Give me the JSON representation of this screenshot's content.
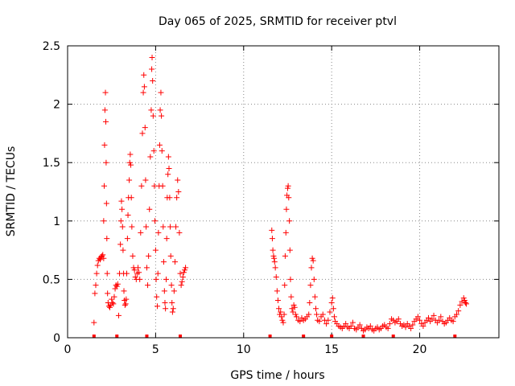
{
  "chart_data": {
    "type": "scatter",
    "title": "Day 065 of 2025, SRMTID for receiver ptvl",
    "xlabel": "GPS time / hours",
    "ylabel": "SRMTID / TECUs",
    "xlim": [
      0,
      24.5
    ],
    "ylim": [
      0,
      2.5
    ],
    "x_ticks": [
      0,
      5,
      10,
      15,
      20
    ],
    "y_ticks": [
      0,
      0.5,
      1,
      1.5,
      2,
      2.5
    ],
    "x_tick_labels": [
      "0",
      "5",
      "10",
      "15",
      "20"
    ],
    "y_tick_labels": [
      "0",
      "0.5",
      "1",
      "1.5",
      "2",
      "2.5"
    ],
    "grid": true,
    "marker": "+",
    "color": "#ff0000",
    "series": [
      {
        "name": "SRMTID",
        "points": [
          [
            1.5,
            0.13
          ],
          [
            1.55,
            0.38
          ],
          [
            1.6,
            0.45
          ],
          [
            1.65,
            0.55
          ],
          [
            1.7,
            0.62
          ],
          [
            1.75,
            0.66
          ],
          [
            1.8,
            0.68
          ],
          [
            1.85,
            0.67
          ],
          [
            1.9,
            0.69
          ],
          [
            1.95,
            0.7
          ],
          [
            2.0,
            0.71
          ],
          [
            2.05,
            0.68
          ],
          [
            2.05,
            1.0
          ],
          [
            2.08,
            1.3
          ],
          [
            2.1,
            1.65
          ],
          [
            2.12,
            1.95
          ],
          [
            2.15,
            2.1
          ],
          [
            2.17,
            1.85
          ],
          [
            2.19,
            1.5
          ],
          [
            2.21,
            1.15
          ],
          [
            2.23,
            0.85
          ],
          [
            2.25,
            0.55
          ],
          [
            2.27,
            0.38
          ],
          [
            2.3,
            0.3
          ],
          [
            2.35,
            0.27
          ],
          [
            2.4,
            0.26
          ],
          [
            2.45,
            0.28
          ],
          [
            2.5,
            0.33
          ],
          [
            2.55,
            0.3
          ],
          [
            2.6,
            0.29
          ],
          [
            2.65,
            0.35
          ],
          [
            2.7,
            0.42
          ],
          [
            2.75,
            0.45
          ],
          [
            2.8,
            0.44
          ],
          [
            2.85,
            0.46
          ],
          [
            2.9,
            0.19
          ],
          [
            2.95,
            0.55
          ],
          [
            3.0,
            0.8
          ],
          [
            3.03,
            1.0
          ],
          [
            3.06,
            1.17
          ],
          [
            3.09,
            1.1
          ],
          [
            3.12,
            0.95
          ],
          [
            3.15,
            0.75
          ],
          [
            3.18,
            0.55
          ],
          [
            3.2,
            0.4
          ],
          [
            3.23,
            0.32
          ],
          [
            3.26,
            0.28
          ],
          [
            3.3,
            0.29
          ],
          [
            3.33,
            0.33
          ],
          [
            3.36,
            0.55
          ],
          [
            3.4,
            0.85
          ],
          [
            3.43,
            1.05
          ],
          [
            3.46,
            1.2
          ],
          [
            3.5,
            1.35
          ],
          [
            3.53,
            1.5
          ],
          [
            3.56,
            1.57
          ],
          [
            3.59,
            1.48
          ],
          [
            3.62,
            1.2
          ],
          [
            3.65,
            0.95
          ],
          [
            3.7,
            0.7
          ],
          [
            3.75,
            0.6
          ],
          [
            3.8,
            0.58
          ],
          [
            3.85,
            0.52
          ],
          [
            3.9,
            0.5
          ],
          [
            3.95,
            0.55
          ],
          [
            4.0,
            0.6
          ],
          [
            4.05,
            0.56
          ],
          [
            4.1,
            0.5
          ],
          [
            4.15,
            0.9
          ],
          [
            4.2,
            1.3
          ],
          [
            4.25,
            1.75
          ],
          [
            4.3,
            2.1
          ],
          [
            4.33,
            2.25
          ],
          [
            4.36,
            2.15
          ],
          [
            4.4,
            1.8
          ],
          [
            4.43,
            1.35
          ],
          [
            4.46,
            0.95
          ],
          [
            4.5,
            0.6
          ],
          [
            4.55,
            0.45
          ],
          [
            4.6,
            0.7
          ],
          [
            4.65,
            1.1
          ],
          [
            4.7,
            1.55
          ],
          [
            4.75,
            1.95
          ],
          [
            4.78,
            2.3
          ],
          [
            4.8,
            2.4
          ],
          [
            4.83,
            2.2
          ],
          [
            4.86,
            1.9
          ],
          [
            4.9,
            1.6
          ],
          [
            4.93,
            1.3
          ],
          [
            4.96,
            1.0
          ],
          [
            5.0,
            0.75
          ],
          [
            5.03,
            0.5
          ],
          [
            5.06,
            0.35
          ],
          [
            5.1,
            0.27
          ],
          [
            5.13,
            0.55
          ],
          [
            5.16,
            0.9
          ],
          [
            5.2,
            1.3
          ],
          [
            5.23,
            1.65
          ],
          [
            5.26,
            1.95
          ],
          [
            5.3,
            2.1
          ],
          [
            5.33,
            1.9
          ],
          [
            5.36,
            1.6
          ],
          [
            5.4,
            1.3
          ],
          [
            5.43,
            0.95
          ],
          [
            5.46,
            0.65
          ],
          [
            5.5,
            0.4
          ],
          [
            5.53,
            0.3
          ],
          [
            5.56,
            0.25
          ],
          [
            5.6,
            0.5
          ],
          [
            5.63,
            0.85
          ],
          [
            5.66,
            1.2
          ],
          [
            5.7,
            1.4
          ],
          [
            5.73,
            1.55
          ],
          [
            5.76,
            1.45
          ],
          [
            5.8,
            1.2
          ],
          [
            5.83,
            0.95
          ],
          [
            5.86,
            0.7
          ],
          [
            5.9,
            0.45
          ],
          [
            5.93,
            0.3
          ],
          [
            5.96,
            0.22
          ],
          [
            6.0,
            0.25
          ],
          [
            6.05,
            0.4
          ],
          [
            6.1,
            0.65
          ],
          [
            6.15,
            0.95
          ],
          [
            6.2,
            1.2
          ],
          [
            6.25,
            1.35
          ],
          [
            6.3,
            1.25
          ],
          [
            6.35,
            0.9
          ],
          [
            6.4,
            0.55
          ],
          [
            6.45,
            0.45
          ],
          [
            6.5,
            0.48
          ],
          [
            6.55,
            0.52
          ],
          [
            6.6,
            0.56
          ],
          [
            6.65,
            0.58
          ],
          [
            6.7,
            0.6
          ],
          [
            11.6,
            0.92
          ],
          [
            11.63,
            0.85
          ],
          [
            11.66,
            0.75
          ],
          [
            11.7,
            0.7
          ],
          [
            11.73,
            0.68
          ],
          [
            11.76,
            0.65
          ],
          [
            11.8,
            0.6
          ],
          [
            11.85,
            0.52
          ],
          [
            11.9,
            0.4
          ],
          [
            11.95,
            0.32
          ],
          [
            12.0,
            0.25
          ],
          [
            12.05,
            0.2
          ],
          [
            12.1,
            0.22
          ],
          [
            12.15,
            0.18
          ],
          [
            12.2,
            0.15
          ],
          [
            12.25,
            0.13
          ],
          [
            12.3,
            0.2
          ],
          [
            12.33,
            0.45
          ],
          [
            12.36,
            0.7
          ],
          [
            12.4,
            0.9
          ],
          [
            12.43,
            1.1
          ],
          [
            12.46,
            1.22
          ],
          [
            12.5,
            1.28
          ],
          [
            12.53,
            1.3
          ],
          [
            12.56,
            1.2
          ],
          [
            12.6,
            1.0
          ],
          [
            12.63,
            0.75
          ],
          [
            12.66,
            0.5
          ],
          [
            12.7,
            0.35
          ],
          [
            12.75,
            0.25
          ],
          [
            12.8,
            0.22
          ],
          [
            12.85,
            0.28
          ],
          [
            12.9,
            0.26
          ],
          [
            12.95,
            0.2
          ],
          [
            13.0,
            0.18
          ],
          [
            13.1,
            0.15
          ],
          [
            13.2,
            0.14
          ],
          [
            13.3,
            0.17
          ],
          [
            13.4,
            0.15
          ],
          [
            13.5,
            0.16
          ],
          [
            13.6,
            0.18
          ],
          [
            13.7,
            0.2
          ],
          [
            13.75,
            0.3
          ],
          [
            13.8,
            0.45
          ],
          [
            13.85,
            0.6
          ],
          [
            13.9,
            0.68
          ],
          [
            13.95,
            0.66
          ],
          [
            14.0,
            0.5
          ],
          [
            14.05,
            0.35
          ],
          [
            14.1,
            0.25
          ],
          [
            14.15,
            0.2
          ],
          [
            14.2,
            0.15
          ],
          [
            14.3,
            0.14
          ],
          [
            14.4,
            0.18
          ],
          [
            14.5,
            0.2
          ],
          [
            14.6,
            0.15
          ],
          [
            14.7,
            0.12
          ],
          [
            14.8,
            0.15
          ],
          [
            14.9,
            0.22
          ],
          [
            15.0,
            0.3
          ],
          [
            15.05,
            0.34
          ],
          [
            15.1,
            0.25
          ],
          [
            15.15,
            0.18
          ],
          [
            15.2,
            0.14
          ],
          [
            15.3,
            0.12
          ],
          [
            15.4,
            0.1
          ],
          [
            15.5,
            0.09
          ],
          [
            15.6,
            0.08
          ],
          [
            15.7,
            0.1
          ],
          [
            15.8,
            0.12
          ],
          [
            15.9,
            0.09
          ],
          [
            16.0,
            0.08
          ],
          [
            16.1,
            0.1
          ],
          [
            16.2,
            0.13
          ],
          [
            16.3,
            0.08
          ],
          [
            16.4,
            0.07
          ],
          [
            16.5,
            0.09
          ],
          [
            16.6,
            0.11
          ],
          [
            16.7,
            0.08
          ],
          [
            16.8,
            0.06
          ],
          [
            16.9,
            0.07
          ],
          [
            17.0,
            0.09
          ],
          [
            17.1,
            0.08
          ],
          [
            17.2,
            0.1
          ],
          [
            17.3,
            0.07
          ],
          [
            17.4,
            0.06
          ],
          [
            17.5,
            0.08
          ],
          [
            17.6,
            0.09
          ],
          [
            17.7,
            0.07
          ],
          [
            17.8,
            0.08
          ],
          [
            17.9,
            0.1
          ],
          [
            18.0,
            0.11
          ],
          [
            18.1,
            0.09
          ],
          [
            18.2,
            0.08
          ],
          [
            18.3,
            0.12
          ],
          [
            18.4,
            0.16
          ],
          [
            18.5,
            0.15
          ],
          [
            18.6,
            0.13
          ],
          [
            18.7,
            0.14
          ],
          [
            18.8,
            0.16
          ],
          [
            18.9,
            0.12
          ],
          [
            19.0,
            0.1
          ],
          [
            19.1,
            0.11
          ],
          [
            19.2,
            0.09
          ],
          [
            19.3,
            0.12
          ],
          [
            19.4,
            0.1
          ],
          [
            19.5,
            0.08
          ],
          [
            19.6,
            0.11
          ],
          [
            19.7,
            0.14
          ],
          [
            19.8,
            0.16
          ],
          [
            19.9,
            0.18
          ],
          [
            20.0,
            0.15
          ],
          [
            20.1,
            0.12
          ],
          [
            20.2,
            0.1
          ],
          [
            20.3,
            0.13
          ],
          [
            20.4,
            0.15
          ],
          [
            20.5,
            0.17
          ],
          [
            20.6,
            0.14
          ],
          [
            20.7,
            0.16
          ],
          [
            20.8,
            0.19
          ],
          [
            20.9,
            0.15
          ],
          [
            21.0,
            0.13
          ],
          [
            21.1,
            0.15
          ],
          [
            21.2,
            0.18
          ],
          [
            21.3,
            0.14
          ],
          [
            21.4,
            0.12
          ],
          [
            21.5,
            0.13
          ],
          [
            21.6,
            0.15
          ],
          [
            21.7,
            0.17
          ],
          [
            21.8,
            0.15
          ],
          [
            21.9,
            0.14
          ],
          [
            22.0,
            0.18
          ],
          [
            22.1,
            0.2
          ],
          [
            22.2,
            0.23
          ],
          [
            22.3,
            0.28
          ],
          [
            22.4,
            0.31
          ],
          [
            22.5,
            0.34
          ],
          [
            22.55,
            0.32
          ],
          [
            22.6,
            0.3
          ],
          [
            22.65,
            0.29
          ]
        ]
      }
    ],
    "gap_markers_x": [
      1.5,
      2.8,
      4.5,
      6.4,
      11.5,
      13.4,
      15.0,
      16.8,
      18.5,
      22.0
    ]
  }
}
